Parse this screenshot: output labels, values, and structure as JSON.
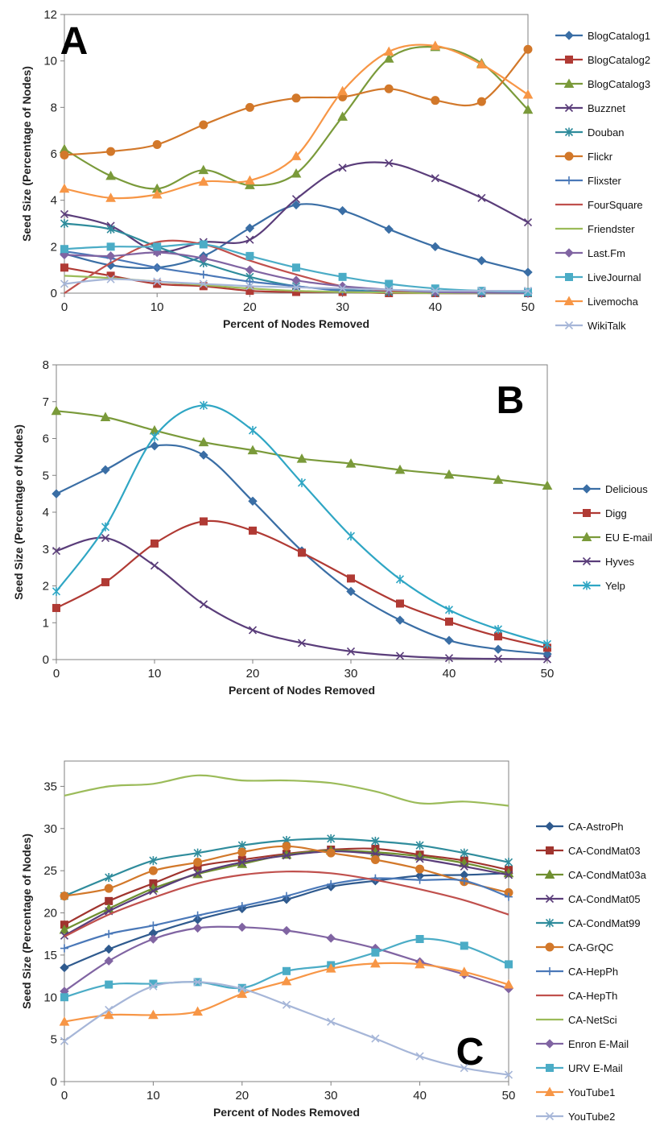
{
  "chart_data": [
    {
      "type": "line",
      "panel_label": "A",
      "xlabel": "Percent of Nodes Removed",
      "ylabel": "Seed Size (Percentage of Nodes)",
      "xlim": [
        0,
        50
      ],
      "ylim": [
        0,
        12
      ],
      "xticks": [
        0,
        10,
        20,
        30,
        40,
        50
      ],
      "yticks": [
        0,
        2,
        4,
        6,
        8,
        10,
        12
      ],
      "x": [
        0,
        5,
        10,
        15,
        20,
        25,
        30,
        35,
        40,
        45,
        50
      ],
      "series": [
        {
          "name": "BlogCatalog1",
          "color": "#3a6ea5",
          "marker": "diamond",
          "values": [
            1.7,
            1.2,
            1.1,
            1.6,
            2.8,
            3.8,
            3.55,
            2.75,
            2.0,
            1.4,
            0.9
          ]
        },
        {
          "name": "BlogCatalog2",
          "color": "#b03a34",
          "marker": "square",
          "values": [
            1.1,
            0.75,
            0.4,
            0.3,
            0.1,
            0.05,
            0.05,
            0.0,
            0.0,
            0.0,
            0.0
          ]
        },
        {
          "name": "BlogCatalog3",
          "color": "#7a9a3a",
          "marker": "triangle",
          "values": [
            6.2,
            5.05,
            4.5,
            5.3,
            4.65,
            5.15,
            7.6,
            10.1,
            10.6,
            9.9,
            7.9
          ]
        },
        {
          "name": "Buzznet",
          "color": "#5a3d7a",
          "marker": "x",
          "values": [
            3.4,
            2.9,
            1.8,
            2.2,
            2.3,
            4.05,
            5.4,
            5.6,
            4.95,
            4.1,
            3.05
          ]
        },
        {
          "name": "Douban",
          "color": "#2f8c9c",
          "marker": "star",
          "values": [
            3.0,
            2.75,
            2.0,
            1.3,
            0.7,
            0.3,
            0.15,
            0.05,
            0.02,
            0.0,
            0.0
          ]
        },
        {
          "name": "Flickr",
          "color": "#d2782a",
          "marker": "circle",
          "values": [
            5.95,
            6.1,
            6.4,
            7.25,
            8.0,
            8.4,
            8.45,
            8.8,
            8.3,
            8.25,
            10.5
          ]
        },
        {
          "name": "Flixster",
          "color": "#4a78b8",
          "marker": "plus",
          "values": [
            1.8,
            1.5,
            1.1,
            0.8,
            0.5,
            0.3,
            0.1,
            0.05,
            0.0,
            0.0,
            0.0
          ]
        },
        {
          "name": "FourSquare",
          "color": "#c0504d",
          "marker": "none",
          "values": [
            0.0,
            1.3,
            2.2,
            2.1,
            1.4,
            0.8,
            0.3,
            0.1,
            0.0,
            0.0,
            0.0
          ]
        },
        {
          "name": "Friendster",
          "color": "#9bbb59",
          "marker": "none",
          "values": [
            0.75,
            0.65,
            0.5,
            0.35,
            0.2,
            0.1,
            0.05,
            0.02,
            0.0,
            0.0,
            0.0
          ]
        },
        {
          "name": "Last.Fm",
          "color": "#8064a2",
          "marker": "diamond",
          "values": [
            1.65,
            1.6,
            1.75,
            1.5,
            1.0,
            0.55,
            0.3,
            0.15,
            0.05,
            0.02,
            0.0
          ]
        },
        {
          "name": "LiveJournal",
          "color": "#4bacc6",
          "marker": "square",
          "values": [
            1.9,
            2.0,
            2.0,
            2.1,
            1.6,
            1.1,
            0.7,
            0.4,
            0.2,
            0.1,
            0.05
          ]
        },
        {
          "name": "Livemocha",
          "color": "#f79646",
          "marker": "triangle",
          "values": [
            4.5,
            4.1,
            4.25,
            4.8,
            4.85,
            5.9,
            8.7,
            10.4,
            10.65,
            9.85,
            8.55
          ]
        },
        {
          "name": "WikiTalk",
          "color": "#a6b6d8",
          "marker": "x",
          "values": [
            0.4,
            0.6,
            0.5,
            0.4,
            0.3,
            0.25,
            0.2,
            0.15,
            0.1,
            0.1,
            0.1
          ]
        }
      ]
    },
    {
      "type": "line",
      "panel_label": "B",
      "xlabel": "Percent of Nodes Removed",
      "ylabel": "Seed Size (Percentage of Nodes)",
      "xlim": [
        0,
        50
      ],
      "ylim": [
        0,
        8
      ],
      "xticks": [
        0,
        10,
        20,
        30,
        40,
        50
      ],
      "yticks": [
        0,
        1,
        2,
        3,
        4,
        5,
        6,
        7,
        8
      ],
      "x": [
        0,
        5,
        10,
        15,
        20,
        25,
        30,
        35,
        40,
        45,
        50
      ],
      "series": [
        {
          "name": "Delicious",
          "color": "#3a6ea5",
          "marker": "diamond",
          "values": [
            4.5,
            5.15,
            5.8,
            5.55,
            4.3,
            2.95,
            1.85,
            1.07,
            0.52,
            0.28,
            0.15
          ]
        },
        {
          "name": "Digg",
          "color": "#b03a34",
          "marker": "square",
          "values": [
            1.4,
            2.1,
            3.15,
            3.75,
            3.5,
            2.9,
            2.2,
            1.52,
            1.03,
            0.63,
            0.32
          ]
        },
        {
          "name": "EU E-mail",
          "color": "#7a9a3a",
          "marker": "triangle",
          "values": [
            6.75,
            6.58,
            6.22,
            5.9,
            5.68,
            5.45,
            5.32,
            5.15,
            5.02,
            4.88,
            4.72
          ]
        },
        {
          "name": "Hyves",
          "color": "#5a3d7a",
          "marker": "x",
          "values": [
            2.95,
            3.3,
            2.55,
            1.5,
            0.8,
            0.45,
            0.22,
            0.1,
            0.04,
            0.02,
            0.01
          ]
        },
        {
          "name": "Yelp",
          "color": "#2fa6c4",
          "marker": "star",
          "values": [
            1.85,
            3.6,
            6.05,
            6.9,
            6.22,
            4.8,
            3.35,
            2.18,
            1.35,
            0.82,
            0.42
          ]
        }
      ]
    },
    {
      "type": "line",
      "panel_label": "C",
      "xlabel": "Percent of Nodes Removed",
      "ylabel": "Seed Size (Percentage of Nodes)",
      "xlim": [
        0,
        50
      ],
      "ylim": [
        0,
        38
      ],
      "xticks": [
        0,
        10,
        20,
        30,
        40,
        50
      ],
      "yticks": [
        0,
        5,
        10,
        15,
        20,
        25,
        30,
        35
      ],
      "x": [
        0,
        5,
        10,
        15,
        20,
        25,
        30,
        35,
        40,
        45,
        50
      ],
      "series": [
        {
          "name": "CA-AstroPh",
          "color": "#2f5a8e",
          "marker": "diamond",
          "values": [
            13.5,
            15.7,
            17.6,
            19.2,
            20.5,
            21.6,
            23.1,
            23.8,
            24.4,
            24.5,
            24.7
          ]
        },
        {
          "name": "CA-CondMat03",
          "color": "#a0342e",
          "marker": "square",
          "values": [
            18.6,
            21.4,
            23.5,
            25.5,
            26.3,
            27.0,
            27.5,
            27.6,
            26.9,
            26.2,
            25.1
          ]
        },
        {
          "name": "CA-CondMat03a",
          "color": "#6f8f30",
          "marker": "triangle",
          "values": [
            18.0,
            20.5,
            22.9,
            24.6,
            25.8,
            26.9,
            27.4,
            27.2,
            26.7,
            25.9,
            24.7
          ]
        },
        {
          "name": "CA-CondMat05",
          "color": "#5a3d7a",
          "marker": "x",
          "values": [
            17.3,
            20.2,
            22.6,
            24.7,
            26.0,
            26.8,
            27.3,
            27.0,
            26.4,
            25.5,
            24.5
          ]
        },
        {
          "name": "CA-CondMat99",
          "color": "#2f8c9c",
          "marker": "star",
          "values": [
            22.0,
            24.2,
            26.2,
            27.1,
            28.0,
            28.6,
            28.8,
            28.5,
            28.0,
            27.1,
            26.0
          ]
        },
        {
          "name": "CA-GrQC",
          "color": "#d2782a",
          "marker": "circle",
          "values": [
            22.0,
            22.9,
            25.0,
            26.0,
            27.2,
            27.9,
            27.1,
            26.3,
            25.2,
            23.7,
            22.4
          ]
        },
        {
          "name": "CA-HepPh",
          "color": "#4a78b8",
          "marker": "plus",
          "values": [
            15.8,
            17.5,
            18.5,
            19.7,
            20.8,
            22.0,
            23.4,
            24.1,
            23.9,
            23.8,
            21.9
          ]
        },
        {
          "name": "CA-HepTh",
          "color": "#c0504d",
          "marker": "none",
          "values": [
            17.2,
            19.8,
            21.8,
            23.5,
            24.5,
            24.9,
            24.7,
            23.9,
            22.8,
            21.5,
            19.8
          ]
        },
        {
          "name": "CA-NetSci",
          "color": "#9bbb59",
          "marker": "none",
          "values": [
            33.9,
            35.0,
            35.3,
            36.3,
            35.7,
            35.7,
            35.4,
            34.4,
            33.0,
            33.2,
            32.7
          ]
        },
        {
          "name": "Enron E-Mail",
          "color": "#8064a2",
          "marker": "diamond",
          "values": [
            10.7,
            14.3,
            16.9,
            18.2,
            18.3,
            17.9,
            17.0,
            15.8,
            14.2,
            12.7,
            11.0
          ]
        },
        {
          "name": "URV E-Mail",
          "color": "#4bacc6",
          "marker": "square",
          "values": [
            10.0,
            11.5,
            11.6,
            11.8,
            11.1,
            13.1,
            13.8,
            15.3,
            16.9,
            16.1,
            13.9
          ]
        },
        {
          "name": "YouTube1",
          "color": "#f79646",
          "marker": "triangle",
          "values": [
            7.1,
            7.9,
            7.9,
            8.3,
            10.4,
            11.9,
            13.4,
            14.0,
            13.9,
            13.0,
            11.5
          ]
        },
        {
          "name": "YouTube2",
          "color": "#a6b6d8",
          "marker": "x",
          "values": [
            4.8,
            8.5,
            11.3,
            11.8,
            11.0,
            9.1,
            7.1,
            5.1,
            3.0,
            1.6,
            0.8
          ]
        }
      ]
    }
  ]
}
